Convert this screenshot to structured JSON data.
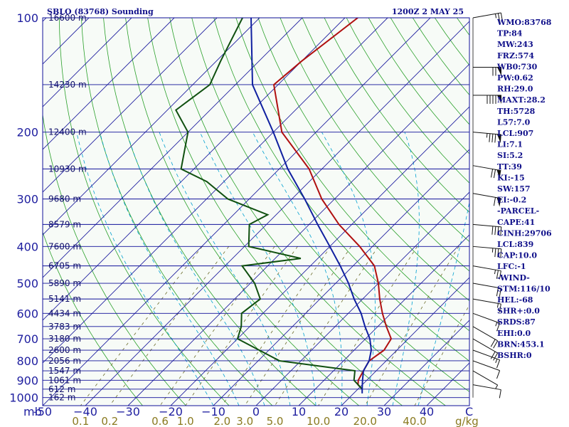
{
  "chart_data": {
    "type": "skew-t",
    "station_label": "SBLO (83768) Sounding",
    "time_label": "1200Z  2 MAY 25",
    "pressure_ticks": [
      100,
      200,
      300,
      400,
      500,
      600,
      700,
      800,
      900,
      1000
    ],
    "temperature_ticks": [
      -50,
      -40,
      -30,
      -20,
      -10,
      0,
      10,
      20,
      30,
      40
    ],
    "temperature_tick_labels": [
      "-50",
      "−40",
      "−30",
      "−20",
      "−10",
      "0",
      "10",
      "20",
      "30",
      "40"
    ],
    "temperature_range": [
      -50,
      50
    ],
    "pressure_range": [
      100,
      1050
    ],
    "x_unit_left": "mb",
    "x_unit_right": "C",
    "mixing_ratio_unit": "g/kg",
    "mixing_ratio_labels": [
      "0.1",
      "0.2",
      "0.6",
      "1.0",
      "2.0",
      "3.0",
      "5.0",
      "10.0",
      "20.0",
      "40.0"
    ],
    "mixing_ratio_values": [
      0.1,
      0.2,
      0.6,
      1.0,
      2.0,
      3.0,
      5.0,
      10.0,
      20.0,
      40.0
    ],
    "heights": [
      {
        "p": 100,
        "label": "16600 m"
      },
      {
        "p": 150,
        "label": "14230 m"
      },
      {
        "p": 200,
        "label": "12400 m"
      },
      {
        "p": 250,
        "label": "10930 m"
      },
      {
        "p": 300,
        "label": "9680 m"
      },
      {
        "p": 350,
        "label": "8579 m"
      },
      {
        "p": 400,
        "label": "7600 m"
      },
      {
        "p": 450,
        "label": "6705 m"
      },
      {
        "p": 500,
        "label": "5890 m"
      },
      {
        "p": 550,
        "label": "5141 m"
      },
      {
        "p": 600,
        "label": "4434 m"
      },
      {
        "p": 650,
        "label": "3783 m"
      },
      {
        "p": 700,
        "label": "3180 m"
      },
      {
        "p": 750,
        "label": "2600 m"
      },
      {
        "p": 800,
        "label": "2056 m"
      },
      {
        "p": 850,
        "label": "1547 m"
      },
      {
        "p": 900,
        "label": "1061 m"
      },
      {
        "p": 950,
        "label": "612 m"
      },
      {
        "p": 1000,
        "label": "162 m"
      }
    ],
    "series": [
      {
        "name": "temperature",
        "color": "#b01010",
        "points": [
          [
            100,
            -67
          ],
          [
            130,
            -70
          ],
          [
            150,
            -71
          ],
          [
            200,
            -58
          ],
          [
            250,
            -43
          ],
          [
            300,
            -33
          ],
          [
            350,
            -23
          ],
          [
            400,
            -13
          ],
          [
            450,
            -5
          ],
          [
            500,
            0
          ],
          [
            550,
            4
          ],
          [
            600,
            8
          ],
          [
            650,
            12
          ],
          [
            700,
            16
          ],
          [
            750,
            17
          ],
          [
            800,
            16
          ],
          [
            850,
            17
          ],
          [
            900,
            18
          ],
          [
            925,
            19
          ],
          [
            950,
            21
          ]
        ]
      },
      {
        "name": "dewpoint",
        "color": "#105010",
        "points": [
          [
            100,
            -94
          ],
          [
            130,
            -89
          ],
          [
            150,
            -86
          ],
          [
            175,
            -88
          ],
          [
            200,
            -80
          ],
          [
            250,
            -73
          ],
          [
            270,
            -64
          ],
          [
            300,
            -55
          ],
          [
            330,
            -42
          ],
          [
            350,
            -44
          ],
          [
            400,
            -39
          ],
          [
            430,
            -24
          ],
          [
            450,
            -36
          ],
          [
            500,
            -29
          ],
          [
            550,
            -24
          ],
          [
            600,
            -25
          ],
          [
            650,
            -22
          ],
          [
            700,
            -20
          ],
          [
            800,
            -5
          ],
          [
            850,
            15
          ],
          [
            900,
            17
          ],
          [
            950,
            21
          ]
        ]
      },
      {
        "name": "parcel",
        "color": "#1020a0",
        "points": [
          [
            100,
            -92
          ],
          [
            150,
            -76
          ],
          [
            200,
            -60
          ],
          [
            250,
            -48
          ],
          [
            300,
            -37
          ],
          [
            350,
            -28
          ],
          [
            400,
            -20
          ],
          [
            450,
            -13
          ],
          [
            500,
            -7
          ],
          [
            550,
            -2
          ],
          [
            600,
            3
          ],
          [
            650,
            7
          ],
          [
            700,
            11
          ],
          [
            750,
            14
          ],
          [
            800,
            16
          ],
          [
            850,
            17
          ],
          [
            900,
            19
          ],
          [
            950,
            21
          ],
          [
            975,
            22
          ]
        ]
      }
    ],
    "winds": [
      {
        "p": 100,
        "dir": 260,
        "spd": 25
      },
      {
        "p": 135,
        "dir": 270,
        "spd": 70
      },
      {
        "p": 160,
        "dir": 270,
        "spd": 90
      },
      {
        "p": 200,
        "dir": 275,
        "spd": 85
      },
      {
        "p": 245,
        "dir": 280,
        "spd": 70
      },
      {
        "p": 290,
        "dir": 280,
        "spd": 60
      },
      {
        "p": 350,
        "dir": 275,
        "spd": 40
      },
      {
        "p": 400,
        "dir": 275,
        "spd": 35
      },
      {
        "p": 450,
        "dir": 280,
        "spd": 25
      },
      {
        "p": 500,
        "dir": 280,
        "spd": 20
      },
      {
        "p": 550,
        "dir": 280,
        "spd": 15
      },
      {
        "p": 600,
        "dir": 290,
        "spd": 15
      },
      {
        "p": 650,
        "dir": 300,
        "spd": 20
      },
      {
        "p": 700,
        "dir": 300,
        "spd": 20
      },
      {
        "p": 750,
        "dir": 290,
        "spd": 15
      },
      {
        "p": 800,
        "dir": 290,
        "spd": 10
      },
      {
        "p": 850,
        "dir": 300,
        "spd": 5
      },
      {
        "p": 925,
        "dir": 280,
        "spd": 10
      }
    ],
    "indices": [
      "WMO:83768",
      "TP:84",
      "MW:243",
      "FRZ:574",
      "WB0:730",
      "PW:0.62",
      "RH:29.0",
      "MAXT:28.2",
      "TH:5728",
      "L57:7.0",
      "LCL:907",
      "LI:7.1",
      "SI:5.2",
      "TT:39",
      "KI:-15",
      "SW:157",
      "EI:-0.2",
      "-PARCEL-",
      "CAPE:41",
      "CINH:29706",
      "LCL:839",
      "CAP:10.0",
      "LFC:-1",
      "-WIND-",
      "STM:116/10",
      "HEL:-68",
      "SHR+:0.0",
      "SRDS:87",
      "EHI:0.0",
      "BRN:453.1",
      "BSHR:0"
    ],
    "colors": {
      "background": "#f7fbf7",
      "isobar": "#10109a",
      "isotherm": "#2020a0",
      "dry_adiabat": "#2aa02a",
      "moist_adiabat": "#00a0d0",
      "mixing_ratio": "#6b6b2a",
      "wind": "#111111"
    }
  }
}
